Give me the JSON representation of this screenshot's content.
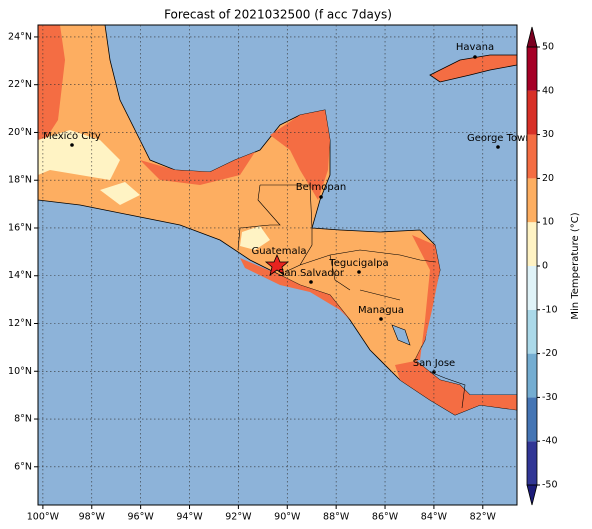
{
  "chart_data": {
    "type": "map",
    "title": "Forecast of 2021032500 (f acc 7days)",
    "xlim": [
      -100.2,
      -80.6
    ],
    "ylim": [
      4.4,
      24.5
    ],
    "grid": true,
    "xticks": [
      {
        "value": -100,
        "label": "100°W"
      },
      {
        "value": -98,
        "label": "98°W"
      },
      {
        "value": -96,
        "label": "96°W"
      },
      {
        "value": -94,
        "label": "94°W"
      },
      {
        "value": -92,
        "label": "92°W"
      },
      {
        "value": -90,
        "label": "90°W"
      },
      {
        "value": -88,
        "label": "88°W"
      },
      {
        "value": -86,
        "label": "86°W"
      },
      {
        "value": -84,
        "label": "84°W"
      },
      {
        "value": -82,
        "label": "82°W"
      }
    ],
    "yticks": [
      {
        "value": 6,
        "label": "6°N"
      },
      {
        "value": 8,
        "label": "8°N"
      },
      {
        "value": 10,
        "label": "10°N"
      },
      {
        "value": 12,
        "label": "12°N"
      },
      {
        "value": 14,
        "label": "14°N"
      },
      {
        "value": 16,
        "label": "16°N"
      },
      {
        "value": 18,
        "label": "18°N"
      },
      {
        "value": 20,
        "label": "20°N"
      },
      {
        "value": 22,
        "label": "22°N"
      },
      {
        "value": 24,
        "label": "24°N"
      }
    ],
    "cities": [
      "Havana",
      "George Town",
      "Mexico City",
      "Belmopan",
      "Guatemala",
      "San Salvador",
      "Tegucigalpa",
      "Managua",
      "San Jose"
    ],
    "colorbar": {
      "label": "Min Temperature (°C)",
      "lim": [
        -50,
        50
      ],
      "ticks": [
        50,
        40,
        30,
        20,
        10,
        0,
        -10,
        -20,
        -30,
        -40,
        -50
      ],
      "levels": [
        -50,
        -40,
        -30,
        -20,
        -10,
        0,
        10,
        20,
        30,
        40,
        50
      ],
      "colors": [
        "#313695",
        "#4575b4",
        "#74add1",
        "#abd9e9",
        "#e0f3f8",
        "#fff3c4",
        "#fdae61",
        "#f46d43",
        "#d73027",
        "#a50026"
      ],
      "extend_colors": [
        "#1c1c7a",
        "#7a0020"
      ]
    }
  }
}
